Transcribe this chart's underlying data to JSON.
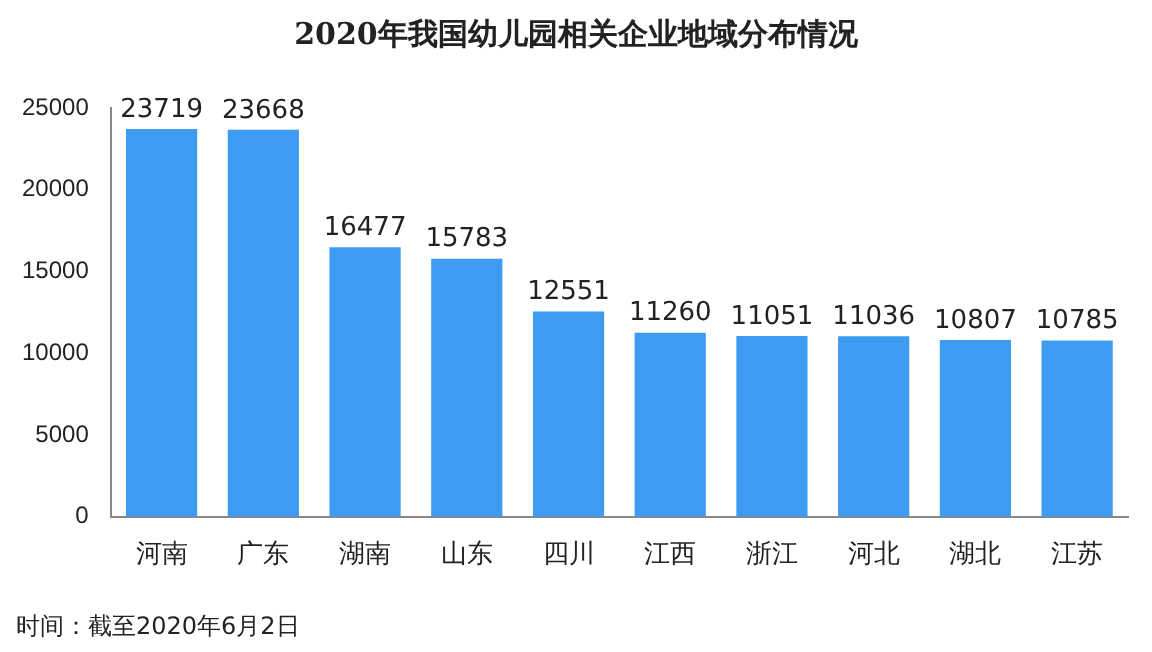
{
  "chart_data": {
    "type": "bar",
    "title": "2020年我国幼儿园相关企业地域分布情况",
    "categories": [
      "河南",
      "广东",
      "湖南",
      "山东",
      "四川",
      "江西",
      "浙江",
      "河北",
      "湖北",
      "江苏"
    ],
    "values": [
      23719,
      23668,
      16477,
      15783,
      12551,
      11260,
      11051,
      11036,
      10807,
      10785
    ],
    "color": "#3d9bf2",
    "ylim": [
      0,
      25000
    ],
    "yticks": [
      0,
      5000,
      10000,
      15000,
      20000,
      25000
    ],
    "grid": false,
    "data_labels": true,
    "annotations": [
      "时间：截至2020年6月2日"
    ]
  }
}
